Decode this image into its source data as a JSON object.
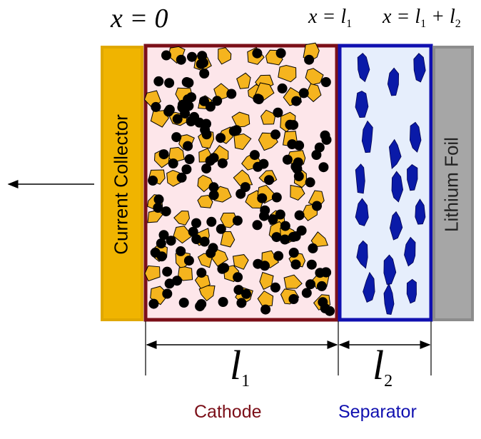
{
  "positions": {
    "x0": "x = 0",
    "x_l1": {
      "text": "x = l",
      "sub": "1"
    },
    "x_l1_l2": {
      "text_a": "x = l",
      "sub_a": "1",
      "text_b": " + l",
      "sub_b": "2"
    }
  },
  "layers": {
    "current_collector": "Current Collector",
    "lithium_foil": "Lithium Foil"
  },
  "dimensions": {
    "l1": {
      "text": "l",
      "sub": "1"
    },
    "l2": {
      "text": "l",
      "sub": "2"
    }
  },
  "regions": {
    "cathode": "Cathode",
    "separator": "Separator"
  },
  "colors": {
    "current_collector": "#f0b400",
    "cathode_border": "#7b0f18",
    "cathode_fill": "#fde6ea",
    "separator_border": "#1010b0",
    "separator_fill": "#e6eefc",
    "lithium_foil": "#a6a6a6",
    "active_particle": "#f5b41e",
    "carbon_particle": "#000000",
    "separator_particle": "#0a1aa8"
  }
}
